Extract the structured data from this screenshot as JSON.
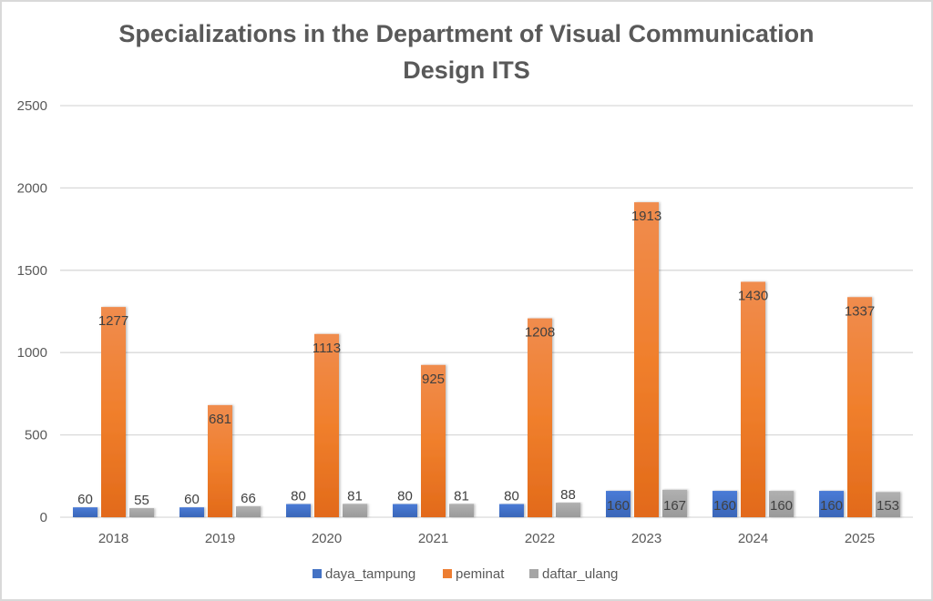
{
  "chart_data": {
    "type": "bar",
    "title_lines": [
      "Specializations in the Department of Visual Communication",
      "Design ITS"
    ],
    "title": "Specializations in the Department of Visual Communication Design ITS",
    "xlabel": "",
    "ylabel": "",
    "categories": [
      "2018",
      "2019",
      "2020",
      "2021",
      "2022",
      "2023",
      "2024",
      "2025"
    ],
    "series": [
      {
        "name": "daya_tampung",
        "color": "#4472c4",
        "values": [
          60,
          60,
          80,
          80,
          80,
          160,
          160,
          160
        ]
      },
      {
        "name": "peminat",
        "color": "#ed7d31",
        "values": [
          1277,
          681,
          1113,
          925,
          1208,
          1913,
          1430,
          1337
        ]
      },
      {
        "name": "daftar_ulang",
        "color": "#a5a5a5",
        "values": [
          55,
          66,
          81,
          81,
          88,
          167,
          160,
          153
        ]
      }
    ],
    "ylim": [
      0,
      2500
    ],
    "yticks": [
      0,
      500,
      1000,
      1500,
      2000,
      2500
    ],
    "grid": true,
    "data_labels": true,
    "legend_position": "bottom"
  }
}
